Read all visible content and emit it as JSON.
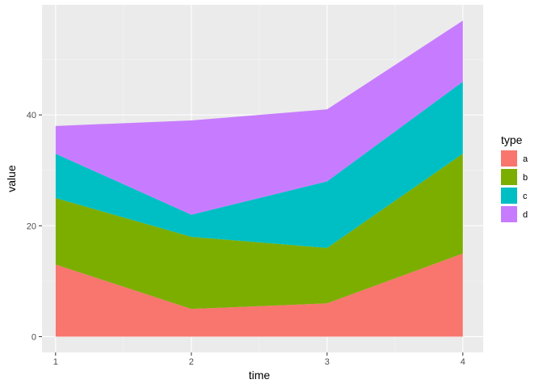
{
  "chart_data": {
    "type": "area",
    "stacked": true,
    "xlabel": "time",
    "ylabel": "value",
    "x": [
      1,
      2,
      3,
      4
    ],
    "xticks": [
      1,
      2,
      3,
      4
    ],
    "yticks": [
      0,
      20,
      40
    ],
    "xlim": [
      0.9,
      4.15
    ],
    "ylim": [
      -2.85,
      59.85
    ],
    "grid": true,
    "legend": {
      "title": "type",
      "position": "right"
    },
    "series": [
      {
        "name": "a",
        "color": "#F8766D",
        "values": [
          13,
          5,
          6,
          15
        ]
      },
      {
        "name": "b",
        "color": "#7CAE00",
        "values": [
          12,
          13,
          10,
          18
        ]
      },
      {
        "name": "c",
        "color": "#00BFC4",
        "values": [
          8,
          4,
          12,
          13
        ]
      },
      {
        "name": "d",
        "color": "#C77CFF",
        "values": [
          5,
          17,
          13,
          11
        ]
      }
    ]
  }
}
